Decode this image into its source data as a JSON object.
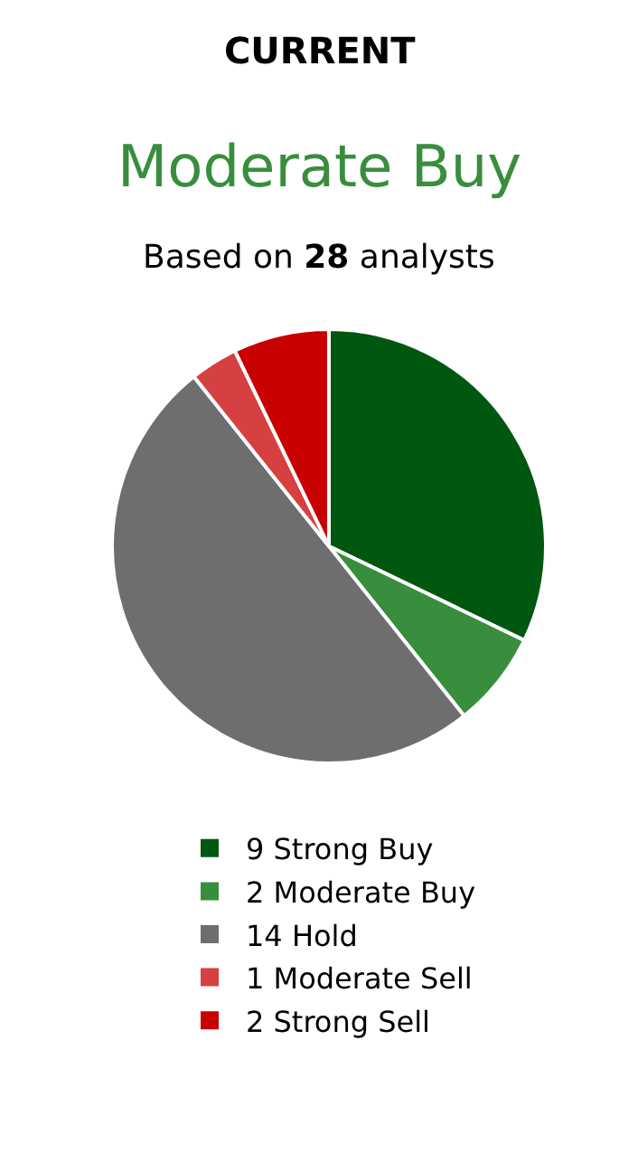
{
  "chart_data": {
    "type": "pie",
    "title": "CURRENT",
    "subtitle": "Moderate Buy",
    "annotations": [
      "Based on 28 analysts"
    ],
    "categories": [
      "9 Strong Buy",
      "2 Moderate Buy",
      "14 Hold",
      "1 Moderate Sell",
      "2 Strong Sell"
    ],
    "values": [
      9,
      2,
      14,
      1,
      2
    ],
    "colors": [
      "#00570f",
      "#388e3c",
      "#6e6e6e",
      "#d64040",
      "#c80000"
    ],
    "legend": "bottom"
  }
}
